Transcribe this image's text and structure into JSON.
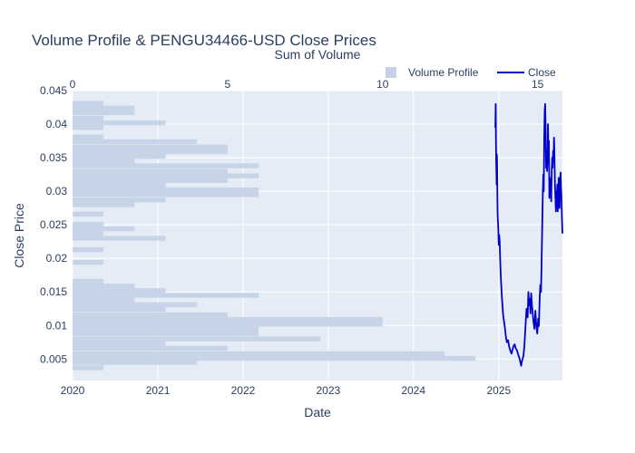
{
  "chart_data": {
    "type": "line",
    "title": "Volume Profile & PENGU34466-USD Close Prices",
    "xlabel": "Date",
    "ylabel": "Close Price",
    "x2label": "Sum of Volume",
    "grid": true,
    "legend_position": "top-right",
    "x_ticks": [
      "2020",
      "2021",
      "2022",
      "2023",
      "2024",
      "2025"
    ],
    "xlim": [
      "2020-01-01",
      "2025-10-01"
    ],
    "y_ticks": [
      "0.005",
      "0.01",
      "0.015",
      "0.02",
      "0.025",
      "0.03",
      "0.035",
      "0.04",
      "0.045"
    ],
    "ylim": [
      0.0018,
      0.045
    ],
    "x2_ticks": [
      "0",
      "5",
      "10",
      "15"
    ],
    "x2lim": [
      0,
      15.8
    ],
    "colors": {
      "volume": "#c5d3e6",
      "close": "#0000cc",
      "plot_bg": "#e5ecf6",
      "grid": "#ffffff"
    },
    "series": [
      {
        "name": "Volume Profile",
        "type": "horizontal-bar",
        "levels": [
          0.0037,
          0.0045,
          0.0051,
          0.0058,
          0.0066,
          0.0073,
          0.008,
          0.0088,
          0.0095,
          0.0102,
          0.0109,
          0.0116,
          0.0124,
          0.0131,
          0.0138,
          0.0145,
          0.0152,
          0.0159,
          0.0166,
          0.0194,
          0.0213,
          0.023,
          0.0237,
          0.0244,
          0.0251,
          0.0266,
          0.028,
          0.0287,
          0.0295,
          0.0302,
          0.0309,
          0.0316,
          0.0323,
          0.033,
          0.0338,
          0.0345,
          0.0352,
          0.0359,
          0.0366,
          0.0374,
          0.0381,
          0.0395,
          0.0402,
          0.0409,
          0.0417,
          0.0424,
          0.0431
        ],
        "values": [
          1,
          4,
          13,
          12,
          5,
          3,
          8,
          6,
          6,
          10,
          10,
          5,
          3,
          4,
          2,
          6,
          3,
          2,
          1,
          1,
          1,
          3,
          1,
          2,
          1,
          1,
          2,
          3,
          6,
          6,
          3,
          5,
          6,
          5,
          6,
          2,
          3,
          5,
          5,
          4,
          1,
          1,
          3,
          1,
          2,
          2,
          1
        ]
      },
      {
        "name": "Close",
        "x": [
          "2024-12-17",
          "2024-12-18",
          "2024-12-19",
          "2024-12-20",
          "2024-12-21",
          "2024-12-22",
          "2024-12-23",
          "2024-12-24",
          "2024-12-25",
          "2024-12-26",
          "2024-12-27",
          "2024-12-28",
          "2024-12-30",
          "2025-01-01",
          "2025-01-03",
          "2025-01-05",
          "2025-01-07",
          "2025-01-09",
          "2025-01-11",
          "2025-01-14",
          "2025-01-17",
          "2025-01-20",
          "2025-01-24",
          "2025-01-28",
          "2025-02-01",
          "2025-02-05",
          "2025-02-10",
          "2025-02-15",
          "2025-02-20",
          "2025-02-25",
          "2025-03-01",
          "2025-03-05",
          "2025-03-10",
          "2025-03-15",
          "2025-03-20",
          "2025-03-25",
          "2025-03-30",
          "2025-04-04",
          "2025-04-07",
          "2025-04-10",
          "2025-04-13",
          "2025-04-17",
          "2025-04-21",
          "2025-04-25",
          "2025-04-30",
          "2025-05-05",
          "2025-05-08",
          "2025-05-11",
          "2025-05-14",
          "2025-05-17",
          "2025-05-20",
          "2025-05-23",
          "2025-05-26",
          "2025-05-30",
          "2025-06-03",
          "2025-06-07",
          "2025-06-11",
          "2025-06-15",
          "2025-06-19",
          "2025-06-22",
          "2025-06-25",
          "2025-06-28",
          "2025-07-01",
          "2025-07-03",
          "2025-07-05",
          "2025-07-07",
          "2025-07-09",
          "2025-07-11",
          "2025-07-13",
          "2025-07-15",
          "2025-07-17",
          "2025-07-19",
          "2025-07-21",
          "2025-07-23",
          "2025-07-25",
          "2025-07-27",
          "2025-07-29",
          "2025-07-31",
          "2025-08-02",
          "2025-08-04",
          "2025-08-06",
          "2025-08-08",
          "2025-08-10",
          "2025-08-12",
          "2025-08-14",
          "2025-08-16",
          "2025-08-18",
          "2025-08-20",
          "2025-08-22",
          "2025-08-24",
          "2025-08-26",
          "2025-08-28",
          "2025-08-30",
          "2025-09-01",
          "2025-09-03",
          "2025-09-05",
          "2025-09-07",
          "2025-09-09",
          "2025-09-11",
          "2025-09-13",
          "2025-09-15",
          "2025-09-17",
          "2025-09-19",
          "2025-09-21",
          "2025-09-23",
          "2025-09-25",
          "2025-09-27",
          "2025-09-29",
          "2025-10-01"
        ],
        "y": [
          0.0395,
          0.0405,
          0.043,
          0.038,
          0.0345,
          0.033,
          0.031,
          0.0355,
          0.0335,
          0.03,
          0.027,
          0.026,
          0.0245,
          0.022,
          0.0235,
          0.0225,
          0.02,
          0.018,
          0.0165,
          0.0145,
          0.013,
          0.0115,
          0.0105,
          0.0095,
          0.0082,
          0.0075,
          0.0078,
          0.0068,
          0.0062,
          0.0058,
          0.0064,
          0.0069,
          0.0072,
          0.0066,
          0.0063,
          0.0057,
          0.0052,
          0.0045,
          0.004,
          0.0046,
          0.005,
          0.0055,
          0.007,
          0.0095,
          0.0125,
          0.0112,
          0.015,
          0.013,
          0.014,
          0.0118,
          0.0148,
          0.0132,
          0.012,
          0.0105,
          0.0095,
          0.0122,
          0.01,
          0.0088,
          0.011,
          0.0099,
          0.0135,
          0.016,
          0.015,
          0.018,
          0.022,
          0.026,
          0.03,
          0.0325,
          0.03,
          0.038,
          0.042,
          0.043,
          0.0395,
          0.0335,
          0.036,
          0.033,
          0.0345,
          0.04,
          0.0355,
          0.0375,
          0.029,
          0.032,
          0.0295,
          0.031,
          0.0285,
          0.033,
          0.035,
          0.0335,
          0.036,
          0.0345,
          0.038,
          0.035,
          0.031,
          0.029,
          0.027,
          0.03,
          0.0285,
          0.031,
          0.027,
          0.029,
          0.032,
          0.03,
          0.0275,
          0.0315,
          0.0328,
          0.0305,
          0.029,
          0.026,
          0.0237
        ]
      }
    ]
  }
}
